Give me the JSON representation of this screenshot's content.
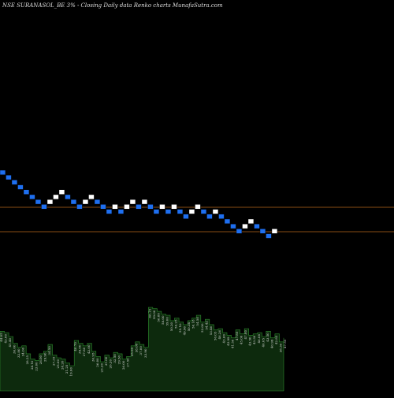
{
  "chart_data": {
    "type": "renko",
    "title": "NSE SURANASOL_BE 3% -  Closing Daily data  Renko  charts MunafaSutra.com",
    "colors": {
      "background": "#000000",
      "down_brick": "#1e6ff0",
      "up_brick": "#ffffff",
      "reference_line": "#b5651d",
      "volume_fill": "#0d2a0d",
      "volume_stroke": "#2e8b2e",
      "text": "#dddddd"
    },
    "reference_lines": [
      {
        "value": "upper"
      },
      {
        "value": "lower"
      }
    ],
    "bricks": [
      {
        "col": 0,
        "level": 0,
        "dir": "down"
      },
      {
        "col": 1,
        "level": -1,
        "dir": "down"
      },
      {
        "col": 2,
        "level": -2,
        "dir": "down"
      },
      {
        "col": 3,
        "level": -3,
        "dir": "down"
      },
      {
        "col": 4,
        "level": -4,
        "dir": "down"
      },
      {
        "col": 5,
        "level": -5,
        "dir": "down"
      },
      {
        "col": 6,
        "level": -6,
        "dir": "down"
      },
      {
        "col": 7,
        "level": -7,
        "dir": "down"
      },
      {
        "col": 8,
        "level": -6,
        "dir": "up"
      },
      {
        "col": 9,
        "level": -5,
        "dir": "up"
      },
      {
        "col": 10,
        "level": -4,
        "dir": "up"
      },
      {
        "col": 11,
        "level": -5,
        "dir": "down"
      },
      {
        "col": 12,
        "level": -6,
        "dir": "down"
      },
      {
        "col": 13,
        "level": -7,
        "dir": "down"
      },
      {
        "col": 14,
        "level": -6,
        "dir": "up"
      },
      {
        "col": 15,
        "level": -5,
        "dir": "up"
      },
      {
        "col": 16,
        "level": -6,
        "dir": "down"
      },
      {
        "col": 17,
        "level": -7,
        "dir": "down"
      },
      {
        "col": 18,
        "level": -8,
        "dir": "down"
      },
      {
        "col": 19,
        "level": -7,
        "dir": "up"
      },
      {
        "col": 20,
        "level": -8,
        "dir": "down"
      },
      {
        "col": 21,
        "level": -7,
        "dir": "up"
      },
      {
        "col": 22,
        "level": -6,
        "dir": "up"
      },
      {
        "col": 23,
        "level": -7,
        "dir": "down"
      },
      {
        "col": 24,
        "level": -6,
        "dir": "up"
      },
      {
        "col": 25,
        "level": -7,
        "dir": "down"
      },
      {
        "col": 26,
        "level": -8,
        "dir": "down"
      },
      {
        "col": 27,
        "level": -7,
        "dir": "up"
      },
      {
        "col": 28,
        "level": -8,
        "dir": "down"
      },
      {
        "col": 29,
        "level": -7,
        "dir": "up"
      },
      {
        "col": 30,
        "level": -8,
        "dir": "down"
      },
      {
        "col": 31,
        "level": -9,
        "dir": "down"
      },
      {
        "col": 32,
        "level": -8,
        "dir": "up"
      },
      {
        "col": 33,
        "level": -7,
        "dir": "up"
      },
      {
        "col": 34,
        "level": -8,
        "dir": "down"
      },
      {
        "col": 35,
        "level": -9,
        "dir": "down"
      },
      {
        "col": 36,
        "level": -8,
        "dir": "up"
      },
      {
        "col": 37,
        "level": -9,
        "dir": "down"
      },
      {
        "col": 38,
        "level": -10,
        "dir": "down"
      },
      {
        "col": 39,
        "level": -11,
        "dir": "down"
      },
      {
        "col": 40,
        "level": -12,
        "dir": "down"
      },
      {
        "col": 41,
        "level": -11,
        "dir": "up"
      },
      {
        "col": 42,
        "level": -10,
        "dir": "up"
      },
      {
        "col": 43,
        "level": -11,
        "dir": "down"
      },
      {
        "col": 44,
        "level": -12,
        "dir": "down"
      },
      {
        "col": 45,
        "level": -13,
        "dir": "down"
      },
      {
        "col": 46,
        "level": -12,
        "dir": "up"
      }
    ],
    "volume": {
      "values": [
        45,
        44,
        41,
        36,
        33,
        34,
        28,
        24,
        23,
        28,
        30,
        35,
        27,
        25,
        24,
        21,
        19,
        38,
        36,
        34,
        36,
        30,
        26,
        22,
        27,
        25,
        29,
        28,
        24,
        26,
        34,
        37,
        35,
        33,
        63,
        62,
        60,
        58,
        57,
        53,
        55,
        52,
        50,
        53,
        55,
        57,
        52,
        54,
        50,
        46,
        47,
        44,
        42,
        40,
        46,
        43,
        47,
        42,
        43,
        44,
        41,
        45,
        40,
        43,
        37,
        40
      ],
      "labels": [
        "44.05",
        "43.00",
        "41.40",
        "36.00",
        "32.80",
        "34.00",
        "28.25",
        "24.10",
        "23.00",
        "28.00",
        "29.90",
        "34.50",
        "27.35",
        "25.00",
        "24.20",
        "21.25",
        "19.00",
        "40.70",
        "39.00",
        "37.80",
        "42.00",
        "30.95",
        "26.00",
        "23.20",
        "31.00",
        "26.20",
        "32.50",
        "29.50",
        "26.00",
        "27.50",
        "35.95",
        "38.00",
        "37.00",
        "33.90",
        "66.15",
        "59.00",
        "56.80",
        "58.00",
        "59.00",
        "50.20",
        "56.25",
        "55.10",
        "49.90",
        "50.34",
        "56.18",
        "54.50",
        "52.00",
        "54.42",
        "53.46",
        "50.05",
        "46.26",
        "43.60",
        "42.99",
        "41.50",
        "47.85",
        "45.00",
        "47.00",
        "43.50",
        "43.30",
        "46.08",
        "40.05",
        "43.50",
        "40.99",
        "42.83",
        "38.30",
        "47.55"
      ]
    }
  }
}
